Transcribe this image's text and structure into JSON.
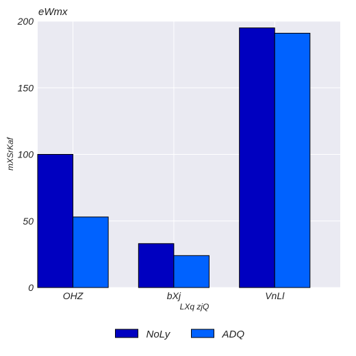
{
  "chart_data": {
    "type": "bar",
    "title": "eWmx",
    "xlabel": "LXq  zjQ",
    "ylabel": "mXSrKaf",
    "categories": [
      "OHZ",
      "bXj",
      "VnLl"
    ],
    "series": [
      {
        "name": "NoLy",
        "values": [
          100,
          33,
          195
        ],
        "color": "#0000c0"
      },
      {
        "name": "ADQ",
        "values": [
          53,
          24,
          191
        ],
        "color": "#0062ff"
      }
    ],
    "ylim": [
      0,
      200
    ],
    "yticks": [
      0,
      50,
      100,
      150,
      200
    ],
    "grid": true,
    "plot_background": "#eaeaf2",
    "legend_position": "bottom-center"
  }
}
